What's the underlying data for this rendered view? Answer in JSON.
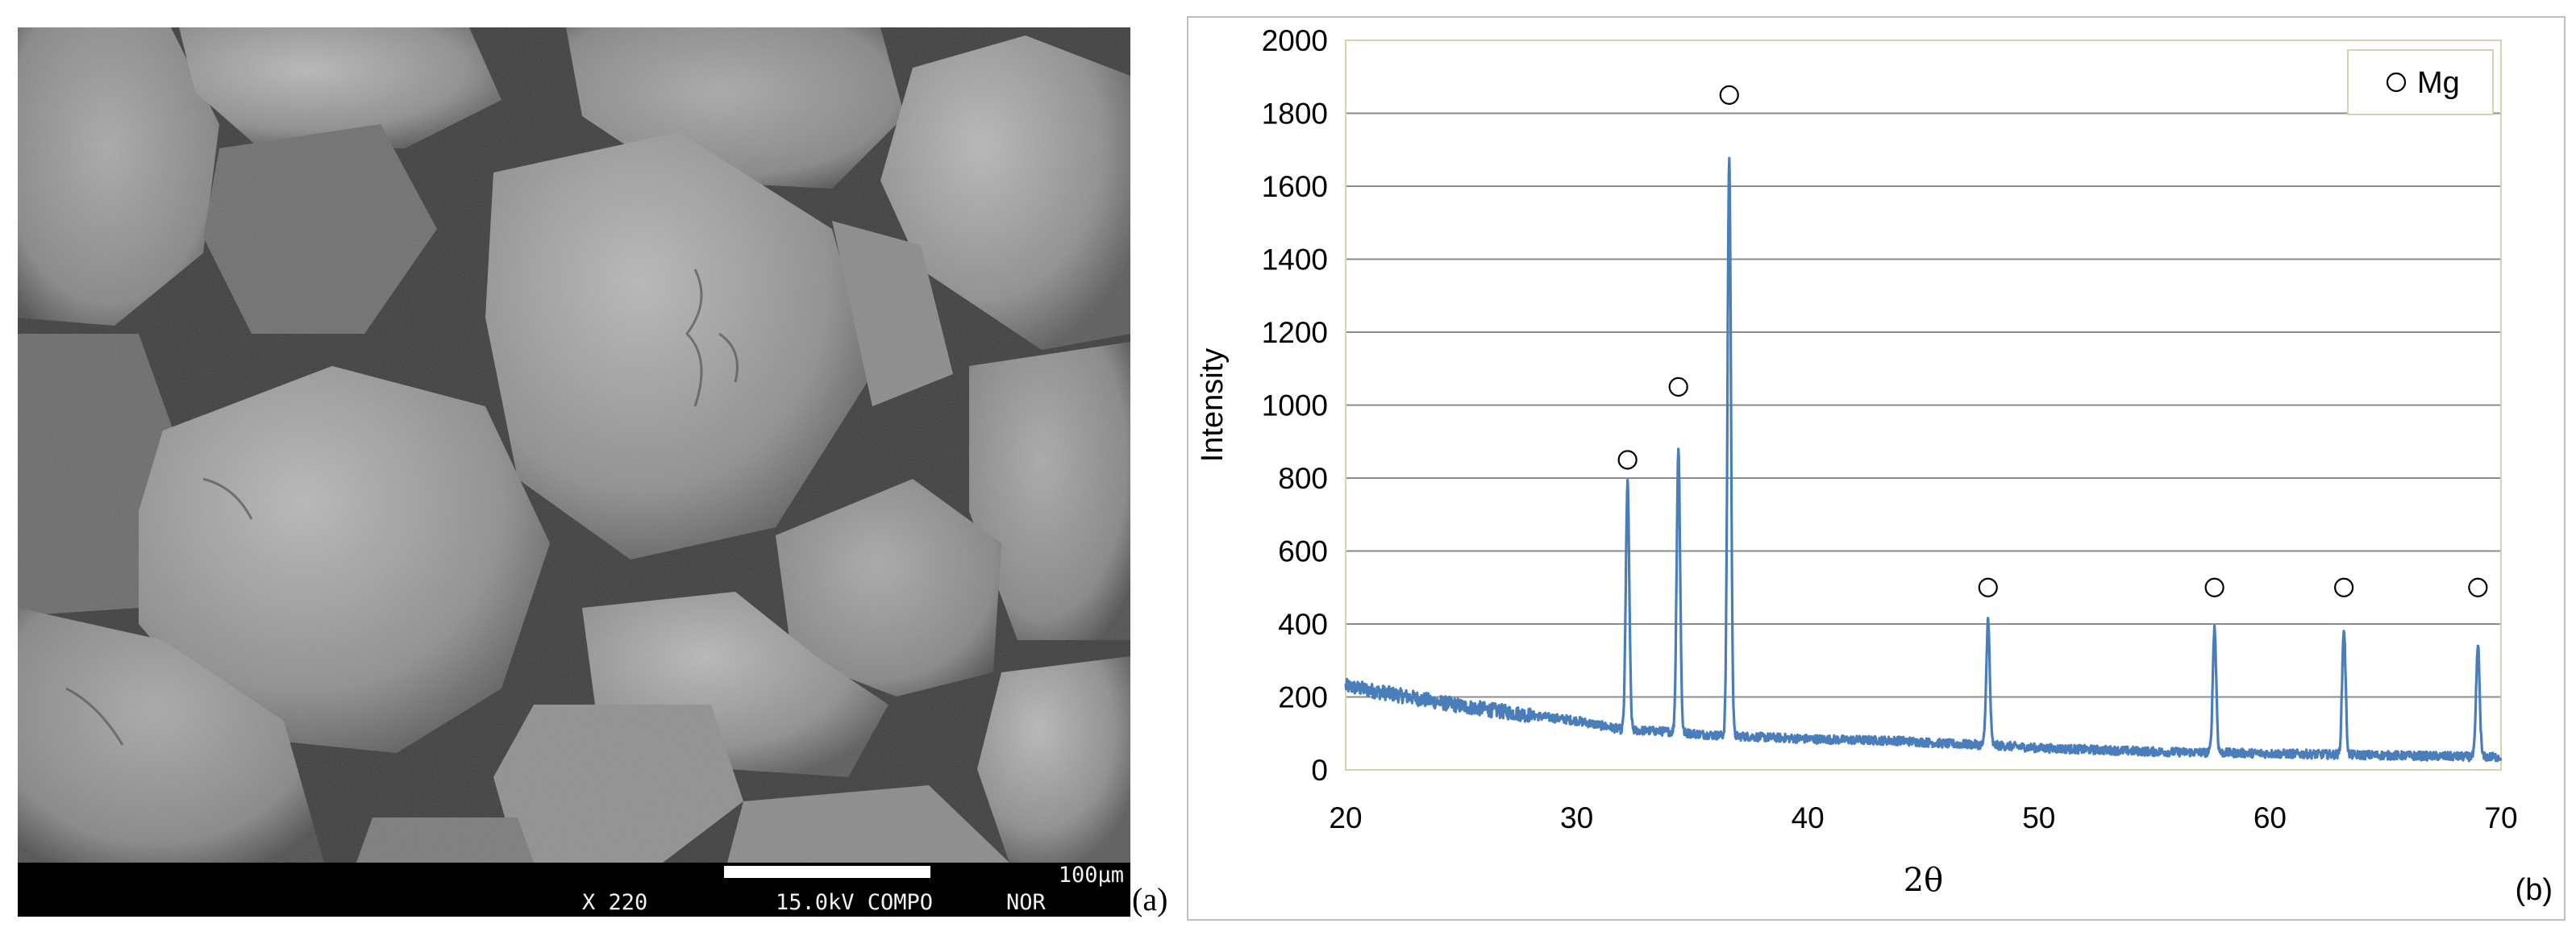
{
  "panel_a": {
    "panel_label": "(a)",
    "info_bar": {
      "scale_label": "100µm",
      "magnification": "X 220",
      "voltage_mode": "15.0kV COMPO",
      "signal": "NOR"
    }
  },
  "panel_b": {
    "panel_label": "(b)"
  },
  "chart_data": {
    "type": "line",
    "title": "",
    "xlabel": "2θ",
    "ylabel": "Intensity",
    "xlim": [
      20,
      70
    ],
    "ylim": [
      0,
      2000
    ],
    "xticks": [
      20,
      30,
      40,
      50,
      60,
      70
    ],
    "yticks": [
      0,
      200,
      400,
      600,
      800,
      1000,
      1200,
      1400,
      1600,
      1800,
      2000
    ],
    "grid": "horizontal",
    "legend_position": "top-right",
    "series": [
      {
        "name": "Mg",
        "legend_marker": "open-circle",
        "color": "#4a7ebb",
        "baseline": [
          [
            20,
            230
          ],
          [
            25,
            175
          ],
          [
            28,
            150
          ],
          [
            30,
            135
          ],
          [
            32,
            110
          ],
          [
            34,
            105
          ],
          [
            36,
            95
          ],
          [
            38,
            90
          ],
          [
            40,
            85
          ],
          [
            42,
            82
          ],
          [
            44,
            80
          ],
          [
            46,
            72
          ],
          [
            48,
            68
          ],
          [
            50,
            60
          ],
          [
            55,
            50
          ],
          [
            60,
            45
          ],
          [
            65,
            40
          ],
          [
            70,
            35
          ]
        ],
        "peaks": [
          {
            "x": 32.2,
            "y": 790,
            "marker_y": 850
          },
          {
            "x": 34.4,
            "y": 880,
            "marker_y": 1050
          },
          {
            "x": 36.6,
            "y": 1680,
            "marker_y": 1850
          },
          {
            "x": 47.8,
            "y": 410,
            "marker_y": 500
          },
          {
            "x": 57.6,
            "y": 390,
            "marker_y": 500
          },
          {
            "x": 63.2,
            "y": 385,
            "marker_y": 500
          },
          {
            "x": 69.0,
            "y": 340,
            "marker_y": 500
          }
        ]
      }
    ]
  }
}
